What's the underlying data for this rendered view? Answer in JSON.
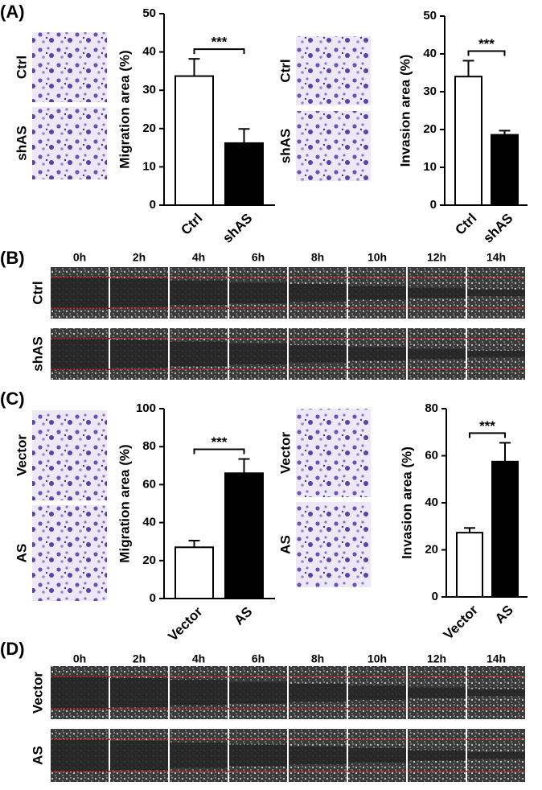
{
  "chart_data": [
    {
      "type": "bar",
      "y_label": "Migration area (%)",
      "categories": [
        "Ctrl",
        "shAS"
      ],
      "values": [
        33.7,
        16.2
      ],
      "errors": [
        4.5,
        3.7
      ],
      "colors": [
        "#ffffff",
        "#000000"
      ],
      "ylim": [
        0,
        50
      ],
      "yticks": [
        0,
        10,
        20,
        30,
        40,
        50
      ],
      "annotation": "***"
    },
    {
      "type": "bar",
      "y_label": "Invasion area (%)",
      "categories": [
        "Ctrl",
        "shAS"
      ],
      "values": [
        34,
        18.6
      ],
      "errors": [
        4.2,
        1.1
      ],
      "colors": [
        "#ffffff",
        "#000000"
      ],
      "ylim": [
        0,
        50
      ],
      "yticks": [
        0,
        10,
        20,
        30,
        40,
        50
      ],
      "annotation": "***"
    },
    {
      "type": "bar",
      "y_label": "Migration area (%)",
      "categories": [
        "Vector",
        "AS"
      ],
      "values": [
        27,
        66
      ],
      "errors": [
        3.5,
        7.5
      ],
      "colors": [
        "#ffffff",
        "#000000"
      ],
      "ylim": [
        0,
        100
      ],
      "yticks": [
        0,
        20,
        40,
        60,
        80,
        100
      ],
      "annotation": "***"
    },
    {
      "type": "bar",
      "y_label": "Invasion area (%)",
      "categories": [
        "Vector",
        "AS"
      ],
      "values": [
        27.3,
        57.5
      ],
      "errors": [
        2,
        8
      ],
      "colors": [
        "#ffffff",
        "#000000"
      ],
      "ylim": [
        0,
        80
      ],
      "yticks": [
        0,
        20,
        40,
        60,
        80
      ],
      "annotation": "***"
    }
  ],
  "panel_a": {
    "label": "(A)",
    "left_images": [
      "Ctrl",
      "shAS"
    ],
    "right_images": [
      "Ctrl",
      "shAS"
    ]
  },
  "panel_b": {
    "label": "(B)",
    "times": [
      "0h",
      "2h",
      "4h",
      "6h",
      "8h",
      "10h",
      "12h",
      "14h"
    ],
    "rows": [
      "Ctrl",
      "shAS"
    ]
  },
  "panel_c": {
    "label": "(C)",
    "left_images": [
      "Vector",
      "AS"
    ],
    "right_images": [
      "Vector",
      "AS"
    ]
  },
  "panel_d": {
    "label": "(D)",
    "times": [
      "0h",
      "2h",
      "4h",
      "6h",
      "8h",
      "10h",
      "12h",
      "14h"
    ],
    "rows": [
      "Vector",
      "AS"
    ]
  }
}
